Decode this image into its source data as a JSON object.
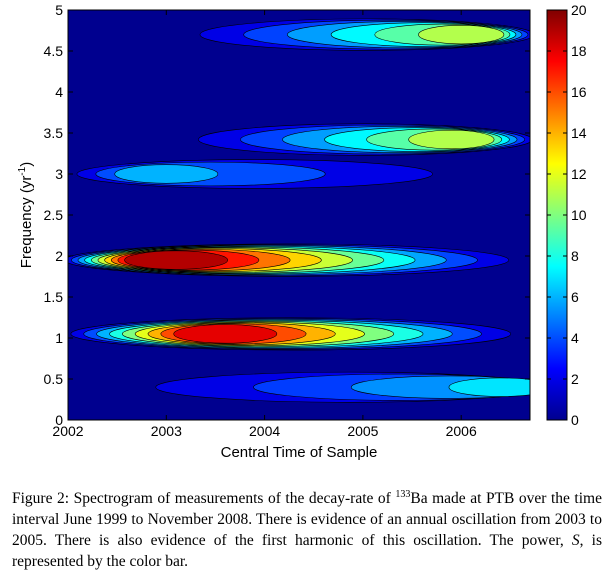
{
  "chart_data": {
    "type": "heatmap",
    "title": "",
    "xlabel": "Central Time of Sample",
    "ylabel": "Frequency (yr",
    "ylabel_superscript": "-1",
    "ylabel_close": ")",
    "xlim": [
      2002,
      2006.7
    ],
    "ylim": [
      0,
      5
    ],
    "x_ticks": [
      2002,
      2003,
      2004,
      2005,
      2006
    ],
    "x_tick_labels": [
      "2002",
      "2003",
      "2004",
      "2005",
      "2006"
    ],
    "y_ticks": [
      0,
      0.5,
      1,
      1.5,
      2,
      2.5,
      3,
      3.5,
      4,
      4.5,
      5
    ],
    "y_tick_labels": [
      "0",
      "0.5",
      "1",
      "1.5",
      "2",
      "2.5",
      "3",
      "3.5",
      "4",
      "4.5",
      "5"
    ],
    "colorbar": {
      "range": [
        0,
        20
      ],
      "ticks": [
        0,
        2,
        4,
        6,
        8,
        10,
        12,
        14,
        16,
        18,
        20
      ],
      "tick_labels": [
        "0",
        "2",
        "4",
        "6",
        "8",
        "10",
        "12",
        "14",
        "16",
        "18",
        "20"
      ],
      "colormap": "jet"
    },
    "features": [
      {
        "name": "annual oscillation band",
        "frequency": 1.05,
        "x_range": [
          2002.0,
          2006.7
        ],
        "peak_power": 18,
        "peak_time": 2003.6
      },
      {
        "name": "first harmonic band",
        "frequency": 1.95,
        "x_range": [
          2002.0,
          2006.7
        ],
        "peak_power": 19,
        "peak_time": 2003.1
      },
      {
        "name": "3.4 per year band",
        "frequency": 3.42,
        "x_range": [
          2003.0,
          2006.7
        ],
        "peak_power": 11,
        "peak_time": 2005.9
      },
      {
        "name": "4.7 per year band",
        "frequency": 4.7,
        "x_range": [
          2003.0,
          2006.7
        ],
        "peak_power": 11,
        "peak_time": 2006.0
      },
      {
        "name": "3.0 per year band",
        "frequency": 3.0,
        "x_range": [
          2002.0,
          2006.7
        ],
        "peak_power": 6,
        "peak_time": 2003.0
      },
      {
        "name": "low frequency band",
        "frequency": 0.4,
        "x_range": [
          2002.0,
          2006.7
        ],
        "peak_power": 7,
        "peak_time": 2006.4
      }
    ]
  },
  "caption": {
    "prefix": "Figure 2: Spectrogram of measurements of the decay-rate of ",
    "isotope_mass": "133",
    "isotope_symbol": "Ba",
    "text": " made at PTB over the time interval June 1999 to November 2008. There is evidence of an annual oscillation from 2003 to 2005. There is also evidence of the first harmonic of this oscillation. The power, ",
    "symbol": "S",
    "suffix": ", is represented by the color bar."
  }
}
